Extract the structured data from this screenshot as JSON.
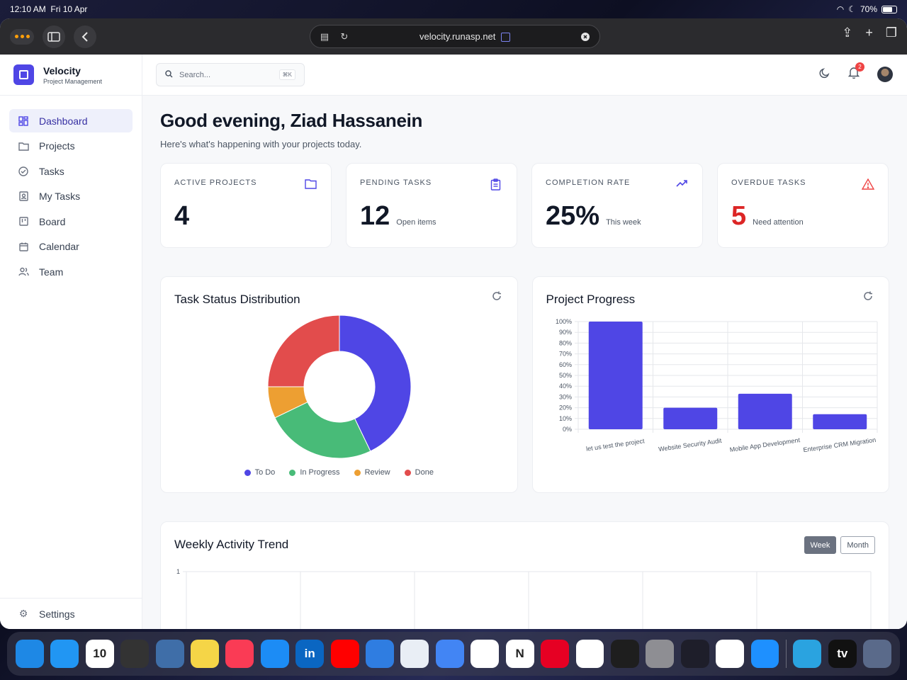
{
  "status_bar": {
    "time": "12:10 AM",
    "date": "Fri 10 Apr",
    "battery": "70%"
  },
  "browser": {
    "url": "velocity.runasp.net"
  },
  "brand": {
    "name": "Velocity",
    "subtitle": "Project Management"
  },
  "sidebar": {
    "items": [
      {
        "label": "Dashboard",
        "icon": "dashboard-icon",
        "active": true
      },
      {
        "label": "Projects",
        "icon": "folder-icon"
      },
      {
        "label": "Tasks",
        "icon": "check-circle-icon"
      },
      {
        "label": "My Tasks",
        "icon": "user-badge-icon"
      },
      {
        "label": "Board",
        "icon": "board-icon"
      },
      {
        "label": "Calendar",
        "icon": "calendar-icon"
      },
      {
        "label": "Team",
        "icon": "team-icon"
      }
    ],
    "settings_label": "Settings"
  },
  "topbar": {
    "search_placeholder": "Search...",
    "search_shortcut": "⌘K",
    "notification_count": "2"
  },
  "greeting": {
    "title": "Good evening, Ziad Hassanein",
    "subtitle": "Here's what's happening with your projects today."
  },
  "stats": [
    {
      "label": "ACTIVE PROJECTS",
      "value": "4",
      "note": "",
      "icon": "folder-icon"
    },
    {
      "label": "PENDING TASKS",
      "value": "12",
      "note": "Open items",
      "icon": "clipboard-icon"
    },
    {
      "label": "COMPLETION RATE",
      "value": "25%",
      "note": "This week",
      "icon": "trending-up-icon"
    },
    {
      "label": "OVERDUE TASKS",
      "value": "5",
      "note": "Need attention",
      "icon": "alert-triangle-icon",
      "accent": "#dc2626"
    }
  ],
  "chart_data": [
    {
      "type": "pie",
      "title": "Task Status Distribution",
      "categories": [
        "To Do",
        "In Progress",
        "Review",
        "Done"
      ],
      "values": [
        12,
        7,
        2,
        7
      ],
      "colors": [
        "#4f46e5",
        "#48bb78",
        "#ed9f32",
        "#e24c4c"
      ],
      "legend": "bottom"
    },
    {
      "type": "bar",
      "title": "Project Progress",
      "categories": [
        "let us test the project",
        "Website Security Audit",
        "Mobile App Development",
        "Enterprise CRM Migration"
      ],
      "values": [
        100,
        20,
        33,
        14
      ],
      "ylim": [
        0,
        100
      ],
      "yticks": [
        "0%",
        "10%",
        "20%",
        "30%",
        "40%",
        "50%",
        "60%",
        "70%",
        "80%",
        "90%",
        "100%"
      ],
      "color": "#4f46e5",
      "grid": true
    },
    {
      "type": "line",
      "title": "Weekly Activity Trend",
      "yticks": [
        "1"
      ],
      "grid": true
    }
  ],
  "weekly": {
    "toggle": [
      "Week",
      "Month"
    ],
    "selected": "Week"
  },
  "dock": {
    "apps": [
      {
        "name": "safari-icon",
        "color": "#1e88e5"
      },
      {
        "name": "mail-icon",
        "color": "#2196f3"
      },
      {
        "name": "calendar-app-icon",
        "color": "#ffffff",
        "label": "10"
      },
      {
        "name": "calculator-icon",
        "color": "#333333"
      },
      {
        "name": "database-icon",
        "color": "#3f6ea8"
      },
      {
        "name": "notes-icon",
        "color": "#f5d547"
      },
      {
        "name": "music-icon",
        "color": "#fa3b55"
      },
      {
        "name": "app-store-icon",
        "color": "#1c8cf5"
      },
      {
        "name": "linkedin-icon",
        "color": "#0a66c2",
        "label": "in"
      },
      {
        "name": "youtube-icon",
        "color": "#ff0000"
      },
      {
        "name": "translate-icon",
        "color": "#2f7de1"
      },
      {
        "name": "freeform-icon",
        "color": "#e9eef5"
      },
      {
        "name": "google-translate-icon",
        "color": "#4285f4"
      },
      {
        "name": "chatgpt-icon",
        "color": "#ffffff"
      },
      {
        "name": "notion-icon",
        "color": "#ffffff",
        "label": "N"
      },
      {
        "name": "pinterest-icon",
        "color": "#e60023"
      },
      {
        "name": "slack-icon",
        "color": "#ffffff"
      },
      {
        "name": "figma-icon",
        "color": "#1e1e1e"
      },
      {
        "name": "settings-app-icon",
        "color": "#8e8e93"
      },
      {
        "name": "camera-app-icon",
        "color": "#1e1e2a"
      },
      {
        "name": "photos-icon",
        "color": "#ffffff"
      },
      {
        "name": "files-icon",
        "color": "#1e90ff"
      },
      {
        "name": "telegram-icon",
        "color": "#2aa3e0"
      },
      {
        "name": "apple-tv-icon",
        "color": "#111111",
        "label": "tv"
      },
      {
        "name": "app-library-icon",
        "color": "#5a6a8a"
      }
    ]
  }
}
